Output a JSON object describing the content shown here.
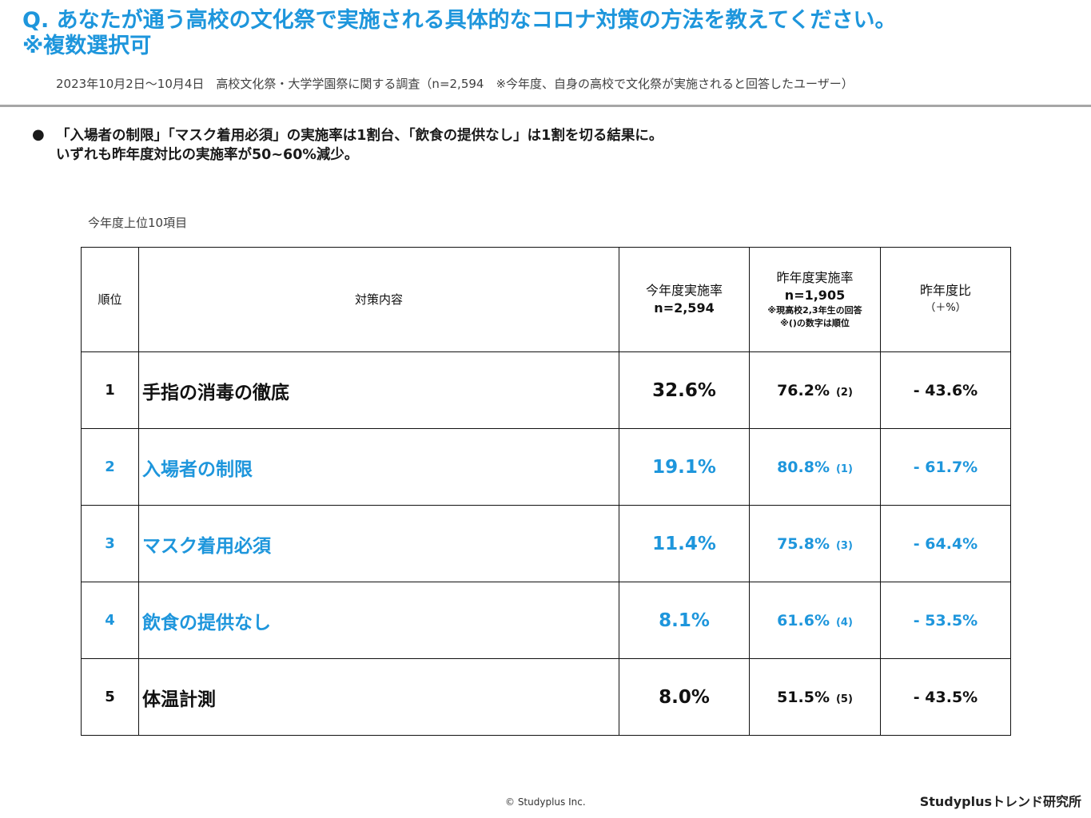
{
  "header": {
    "question_line1": "Q. あなたが通う高校の文化祭で実施される具体的なコロナ対策の方法を教えてください。",
    "question_line2": "※複数選択可",
    "survey_note": "2023年10月2日～10月4日　高校文化祭・大学学園祭に関する調査（n=2,594　※今年度、自身の高校で文化祭が実施されると回答したユーザー）"
  },
  "summary": {
    "bullet": "●",
    "line1": "「入場者の制限」「マスク着用必須」の実施率は1割台、「飲食の提供なし」は1割を切る結果に。",
    "line2": "いずれも昨年度対比の実施率が50~60%減少。"
  },
  "table": {
    "caption": "今年度上位10項目",
    "headers": {
      "rank": "順位",
      "content": "対策内容",
      "this_year_title": "今年度実施率",
      "this_year_n": "n=2,594",
      "last_year_title": "昨年度実施率",
      "last_year_n": "n=1,905",
      "last_year_note1": "※現高校2,3年生の回答",
      "last_year_note2": "※()の数字は順位",
      "ratio_title": "昨年度比",
      "ratio_unit": "（＋%）"
    },
    "rows": [
      {
        "rank": "1",
        "item": "手指の消毒の徹底",
        "this_year": "32.6%",
        "last_year": "76.2%",
        "last_rank": "(2)",
        "diff": "- 43.6%"
      },
      {
        "rank": "2",
        "item": "入場者の制限",
        "this_year": "19.1%",
        "last_year": "80.8%",
        "last_rank": "(1)",
        "diff": "- 61.7%"
      },
      {
        "rank": "3",
        "item": "マスク着用必須",
        "this_year": "11.4%",
        "last_year": "75.8%",
        "last_rank": "(3)",
        "diff": "- 64.4%"
      },
      {
        "rank": "4",
        "item": "飲食の提供なし",
        "this_year": "8.1%",
        "last_year": "61.6%",
        "last_rank": "(4)",
        "diff": "- 53.5%"
      },
      {
        "rank": "5",
        "item": "体温計測",
        "this_year": "8.0%",
        "last_year": "51.5%",
        "last_rank": "(5)",
        "diff": "- 43.5%"
      }
    ]
  },
  "footer": {
    "copyright": "© Studyplus Inc.",
    "brand": "Studyplusトレンド研究所"
  },
  "colors": {
    "accent": "#1e96dc",
    "text": "#111111"
  }
}
